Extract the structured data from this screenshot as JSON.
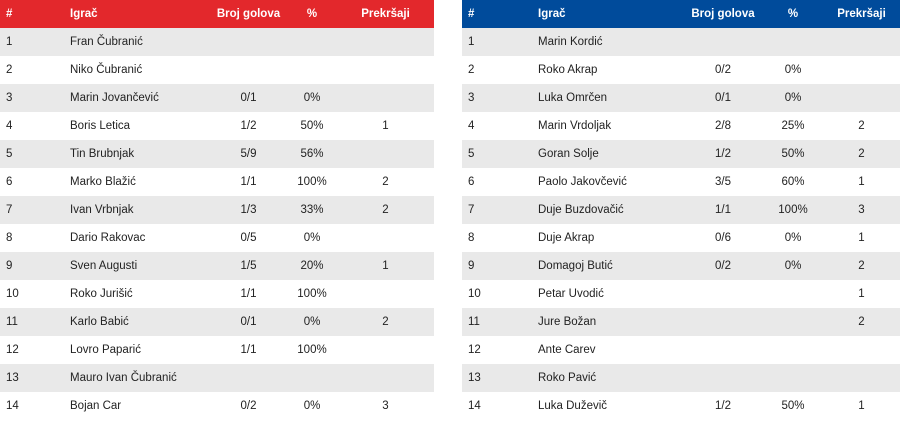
{
  "colors": {
    "home_header": "#e3282c",
    "away_header": "#004b9b",
    "row_stripe": "#e9e9e9"
  },
  "columns": {
    "num": "#",
    "name": "Igrač",
    "goals": "Broj golova",
    "pct": "%",
    "fouls": "Prekršaji"
  },
  "home": {
    "players": [
      {
        "num": "1",
        "name": "Fran Čubranić",
        "goals": "",
        "pct": "",
        "fouls": ""
      },
      {
        "num": "2",
        "name": "Niko Čubranić",
        "goals": "",
        "pct": "",
        "fouls": ""
      },
      {
        "num": "3",
        "name": "Marin Jovančević",
        "goals": "0/1",
        "pct": "0%",
        "fouls": ""
      },
      {
        "num": "4",
        "name": "Boris Letica",
        "goals": "1/2",
        "pct": "50%",
        "fouls": "1"
      },
      {
        "num": "5",
        "name": "Tin Brubnjak",
        "goals": "5/9",
        "pct": "56%",
        "fouls": ""
      },
      {
        "num": "6",
        "name": "Marko Blažić",
        "goals": "1/1",
        "pct": "100%",
        "fouls": "2"
      },
      {
        "num": "7",
        "name": "Ivan Vrbnjak",
        "goals": "1/3",
        "pct": "33%",
        "fouls": "2"
      },
      {
        "num": "8",
        "name": "Dario Rakovac",
        "goals": "0/5",
        "pct": "0%",
        "fouls": ""
      },
      {
        "num": "9",
        "name": "Sven Augusti",
        "goals": "1/5",
        "pct": "20%",
        "fouls": "1"
      },
      {
        "num": "10",
        "name": "Roko Jurišić",
        "goals": "1/1",
        "pct": "100%",
        "fouls": ""
      },
      {
        "num": "11",
        "name": "Karlo Babić",
        "goals": "0/1",
        "pct": "0%",
        "fouls": "2"
      },
      {
        "num": "12",
        "name": "Lovro Paparić",
        "goals": "1/1",
        "pct": "100%",
        "fouls": ""
      },
      {
        "num": "13",
        "name": "Mauro Ivan Čubranić",
        "goals": "",
        "pct": "",
        "fouls": ""
      },
      {
        "num": "14",
        "name": "Bojan Car",
        "goals": "0/2",
        "pct": "0%",
        "fouls": "3"
      }
    ]
  },
  "away": {
    "players": [
      {
        "num": "1",
        "name": "Marin Kordić",
        "goals": "",
        "pct": "",
        "fouls": ""
      },
      {
        "num": "2",
        "name": "Roko Akrap",
        "goals": "0/2",
        "pct": "0%",
        "fouls": ""
      },
      {
        "num": "3",
        "name": "Luka Omrčen",
        "goals": "0/1",
        "pct": "0%",
        "fouls": ""
      },
      {
        "num": "4",
        "name": "Marin Vrdoljak",
        "goals": "2/8",
        "pct": "25%",
        "fouls": "2"
      },
      {
        "num": "5",
        "name": "Goran Solje",
        "goals": "1/2",
        "pct": "50%",
        "fouls": "2"
      },
      {
        "num": "6",
        "name": "Paolo Jakovčević",
        "goals": "3/5",
        "pct": "60%",
        "fouls": "1"
      },
      {
        "num": "7",
        "name": "Duje Buzdovačić",
        "goals": "1/1",
        "pct": "100%",
        "fouls": "3"
      },
      {
        "num": "8",
        "name": "Duje Akrap",
        "goals": "0/6",
        "pct": "0%",
        "fouls": "1"
      },
      {
        "num": "9",
        "name": "Domagoj Butić",
        "goals": "0/2",
        "pct": "0%",
        "fouls": "2"
      },
      {
        "num": "10",
        "name": "Petar Uvodić",
        "goals": "",
        "pct": "",
        "fouls": "1"
      },
      {
        "num": "11",
        "name": "Jure Božan",
        "goals": "",
        "pct": "",
        "fouls": "2"
      },
      {
        "num": "12",
        "name": "Ante Carev",
        "goals": "",
        "pct": "",
        "fouls": ""
      },
      {
        "num": "13",
        "name": "Roko Pavić",
        "goals": "",
        "pct": "",
        "fouls": ""
      },
      {
        "num": "14",
        "name": "Luka Duževič",
        "goals": "1/2",
        "pct": "50%",
        "fouls": "1"
      }
    ]
  }
}
